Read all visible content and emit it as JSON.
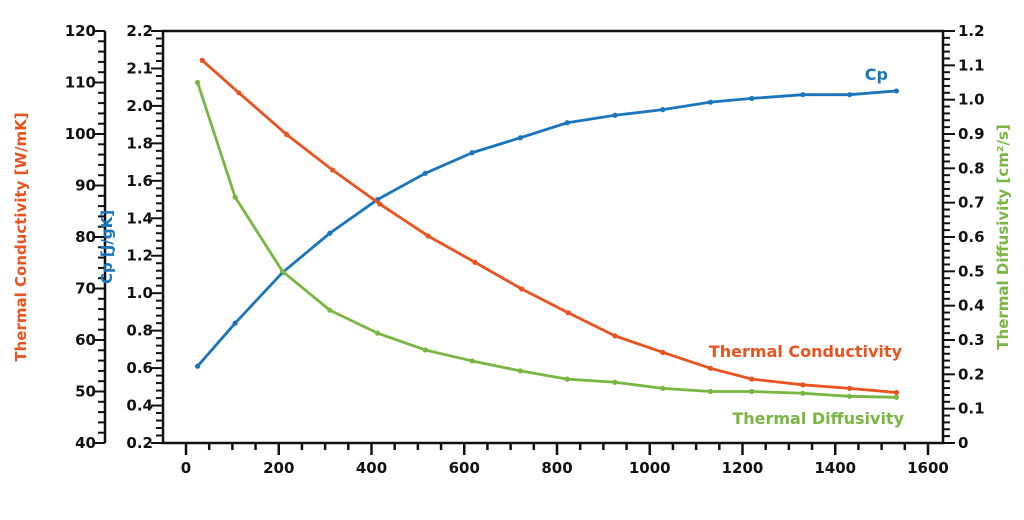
{
  "chart_data": {
    "type": "line",
    "title": "",
    "xlabel": "",
    "xlim": [
      0,
      1600
    ],
    "x_ticks": [
      0,
      200,
      400,
      600,
      800,
      1000,
      1200,
      1400,
      1600
    ],
    "grid": false,
    "axes": {
      "left_outer": {
        "label": "Thermal Conductivity [W/mK]",
        "color": "#e8531f",
        "ticks": [
          40,
          50,
          60,
          70,
          80,
          90,
          100,
          110,
          120
        ],
        "tick_labels": [
          "40",
          "50",
          "60",
          "70",
          "80",
          "90",
          "100",
          "110",
          "120"
        ]
      },
      "left_inner": {
        "label": "Cp [J/gK]",
        "color": "#1b75bc",
        "ticks": [
          0.2,
          0.4,
          0.6,
          0.8,
          1.0,
          1.2,
          1.4,
          1.6,
          1.8,
          2.0,
          2.1,
          2.2
        ],
        "tick_labels": [
          "0.2",
          "0.4",
          "0.6",
          "0.8",
          "1.0",
          "1.2",
          "1.4",
          "1.6",
          "1.8",
          "2.0",
          "2.1",
          "2.2"
        ]
      },
      "right": {
        "label": "Thermal Diffusivity [cm²/s]",
        "color": "#7ab642",
        "ticks": [
          0,
          0.1,
          0.2,
          0.3,
          0.4,
          0.5,
          0.6,
          0.7,
          0.8,
          0.9,
          1.0,
          1.1,
          1.2
        ],
        "tick_labels": [
          "0",
          "0.1",
          "0.2",
          "0.3",
          "0.4",
          "0.5",
          "0.6",
          "0.7",
          "0.8",
          "0.9",
          "1.0",
          "1.1",
          "1.2"
        ]
      }
    },
    "series": [
      {
        "name": "Cp",
        "axis": "left_inner",
        "color": "#1b75bc",
        "x": [
          25,
          106,
          208,
          310,
          413,
          516,
          617,
          721,
          822,
          925,
          1028,
          1131,
          1220,
          1330,
          1431,
          1532
        ],
        "y": [
          0.61,
          0.84,
          1.11,
          1.32,
          1.5,
          1.64,
          1.75,
          1.83,
          1.91,
          1.95,
          1.98,
          2.01,
          2.02,
          2.03,
          2.03,
          2.04
        ]
      },
      {
        "name": "Thermal Conductivity",
        "axis": "left_outer",
        "color": "#e8531f",
        "x": [
          35,
          114,
          217,
          316,
          418,
          522,
          623,
          724,
          824,
          925,
          1028,
          1131,
          1220,
          1330,
          1431,
          1532
        ],
        "y": [
          114.3,
          108.0,
          99.9,
          93.0,
          86.4,
          80.2,
          75.1,
          69.9,
          65.3,
          60.8,
          57.6,
          54.5,
          52.4,
          51.3,
          50.6,
          49.8
        ]
      },
      {
        "name": "Thermal Diffusivity",
        "axis": "right",
        "color": "#7ab642",
        "x": [
          25,
          106,
          208,
          310,
          413,
          516,
          617,
          721,
          822,
          925,
          1028,
          1131,
          1220,
          1330,
          1431,
          1532
        ],
        "y": [
          1.05,
          0.716,
          0.5,
          0.387,
          0.32,
          0.271,
          0.239,
          0.21,
          0.186,
          0.177,
          0.159,
          0.15,
          0.15,
          0.145,
          0.136,
          0.133
        ]
      }
    ],
    "annotations": [
      {
        "text": "Cp",
        "series": "Cp"
      },
      {
        "text": "Thermal Conductivity",
        "series": "Thermal Conductivity"
      },
      {
        "text": "Thermal Diffusivity",
        "series": "Thermal Diffusivity"
      }
    ]
  }
}
